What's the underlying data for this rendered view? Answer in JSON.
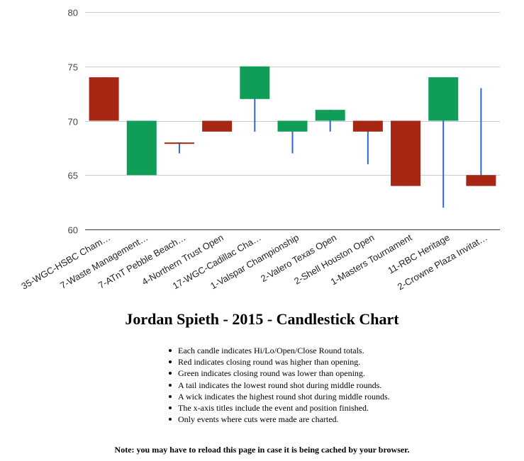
{
  "chart_data": {
    "type": "candlestick",
    "title": "",
    "xlabel": "",
    "ylabel": "",
    "ylim": [
      60,
      80
    ],
    "yticks": [
      60,
      65,
      70,
      75,
      80
    ],
    "grid": true,
    "legend": "none",
    "colors": {
      "up": "#a52714",
      "down": "#0f9d58",
      "line": "#3366cc"
    },
    "categories": [
      "35-WGC-HSBC Cham…",
      "7-Waste Management…",
      "7-ATnT Pebble Beach…",
      "4-Northern Trust Open",
      "17-WGC-Cadillac Cha…",
      "1-Valspar Championship",
      "2-Valero Texas Open",
      "2-Shell Houston Open",
      "1-Masters Tournament",
      "11-RBC Heritage",
      "2-Crowne Plaza Invitat…"
    ],
    "candles": [
      {
        "low": 70,
        "open": 70,
        "close": 74,
        "high": 74
      },
      {
        "low": 65,
        "open": 70,
        "close": 65,
        "high": 70
      },
      {
        "low": 67,
        "open": 68,
        "close": 68,
        "high": 68
      },
      {
        "low": 69,
        "open": 69,
        "close": 70,
        "high": 70
      },
      {
        "low": 69,
        "open": 75,
        "close": 72,
        "high": 75
      },
      {
        "low": 67,
        "open": 70,
        "close": 69,
        "high": 70
      },
      {
        "low": 69,
        "open": 71,
        "close": 70,
        "high": 71
      },
      {
        "low": 66,
        "open": 69,
        "close": 70,
        "high": 70
      },
      {
        "low": 64,
        "open": 64,
        "close": 70,
        "high": 70
      },
      {
        "low": 62,
        "open": 74,
        "close": 70,
        "high": 74
      },
      {
        "low": 64,
        "open": 64,
        "close": 65,
        "high": 73
      }
    ]
  },
  "page": {
    "title": "Jordan Spieth - 2015 - Candlestick Chart",
    "notes": [
      "Each candle indicates Hi/Lo/Open/Close Round totals.",
      "Red indicates closing round was higher than opening.",
      "Green indicates closing round was lower than opening.",
      "A tail indicates the lowest round shot during middle rounds.",
      "A wick indicates the highest round shot during middle rounds.",
      "The x-axis titles include the event and position finished.",
      " Only events where cuts were made are charted."
    ],
    "footnote": "Note: you may have to reload this page in case it is being cached by your browser."
  }
}
